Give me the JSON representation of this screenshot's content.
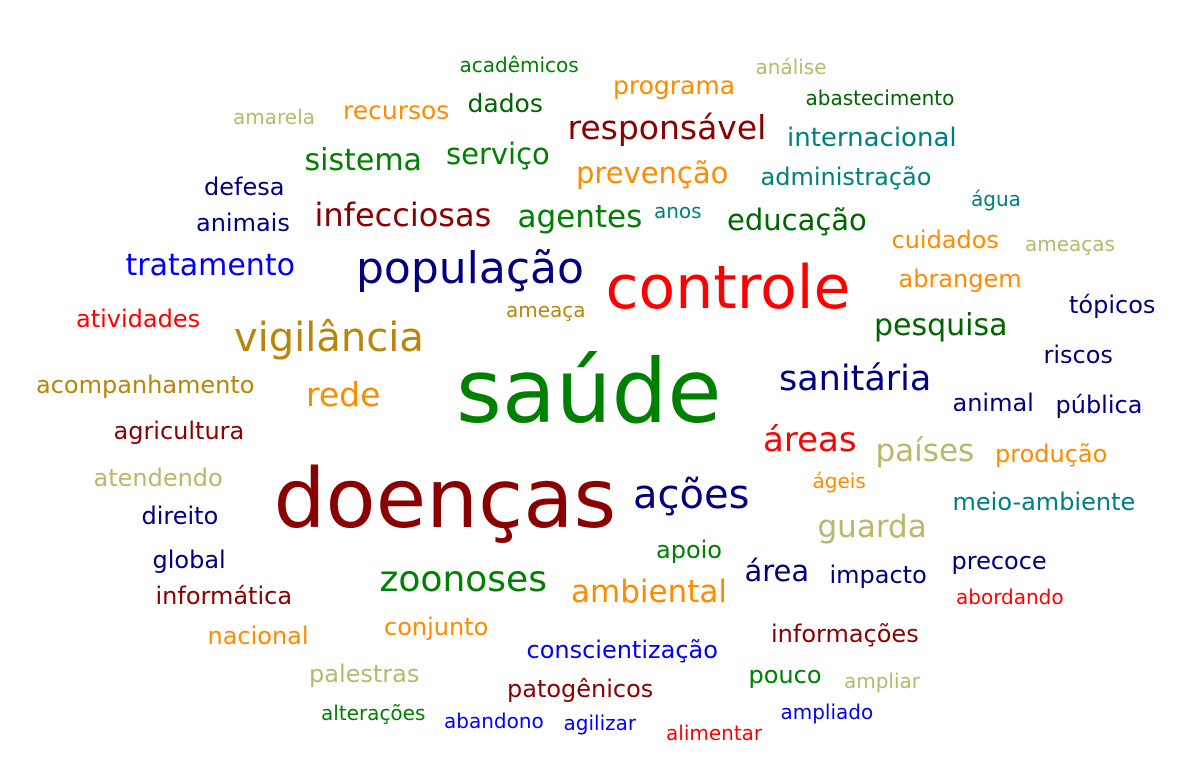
{
  "colors": {
    "red": "#ff0000",
    "green": "#008000",
    "darkgreen": "#006400",
    "maroon": "#8b0000",
    "navy": "#000080",
    "blue": "#0000ff",
    "orange": "#ff8c00",
    "goldenrod": "#b8860b",
    "khaki": "#bdb76b",
    "teal": "#008080"
  },
  "words": [
    {
      "text": "saúde",
      "color": "green"
    },
    {
      "text": "doenças",
      "color": "maroon"
    },
    {
      "text": "controle",
      "color": "red"
    },
    {
      "text": "população",
      "color": "navy"
    },
    {
      "text": "vigilância",
      "color": "goldenrod"
    },
    {
      "text": "ações",
      "color": "navy"
    },
    {
      "text": "zoonoses",
      "color": "green"
    },
    {
      "text": "sanitária",
      "color": "navy"
    },
    {
      "text": "áreas",
      "color": "red"
    },
    {
      "text": "rede",
      "color": "orange"
    },
    {
      "text": "responsável",
      "color": "maroon"
    },
    {
      "text": "infecciosas",
      "color": "maroon"
    },
    {
      "text": "agentes",
      "color": "green"
    },
    {
      "text": "ambiental",
      "color": "orange"
    },
    {
      "text": "guarda",
      "color": "khaki"
    },
    {
      "text": "países",
      "color": "khaki"
    },
    {
      "text": "pesquisa",
      "color": "darkgreen"
    },
    {
      "text": "tratamento",
      "color": "blue"
    },
    {
      "text": "sistema",
      "color": "green"
    },
    {
      "text": "serviço",
      "color": "green"
    },
    {
      "text": "prevenção",
      "color": "orange"
    },
    {
      "text": "educação",
      "color": "darkgreen"
    },
    {
      "text": "área",
      "color": "navy"
    },
    {
      "text": "internacional",
      "color": "teal"
    },
    {
      "text": "programa",
      "color": "orange"
    },
    {
      "text": "recursos",
      "color": "orange"
    },
    {
      "text": "dados",
      "color": "darkgreen"
    },
    {
      "text": "administração",
      "color": "teal"
    },
    {
      "text": "cuidados",
      "color": "orange"
    },
    {
      "text": "abrangem",
      "color": "orange"
    },
    {
      "text": "tópicos",
      "color": "navy"
    },
    {
      "text": "riscos",
      "color": "navy"
    },
    {
      "text": "animal",
      "color": "navy"
    },
    {
      "text": "pública",
      "color": "navy"
    },
    {
      "text": "produção",
      "color": "orange"
    },
    {
      "text": "meio-ambiente",
      "color": "teal"
    },
    {
      "text": "precoce",
      "color": "navy"
    },
    {
      "text": "impacto",
      "color": "navy"
    },
    {
      "text": "informações",
      "color": "maroon"
    },
    {
      "text": "conscientização",
      "color": "blue"
    },
    {
      "text": "patogênicos",
      "color": "maroon"
    },
    {
      "text": "informática",
      "color": "maroon"
    },
    {
      "text": "acompanhamento",
      "color": "goldenrod"
    },
    {
      "text": "agricultura",
      "color": "maroon"
    },
    {
      "text": "atividades",
      "color": "red"
    },
    {
      "text": "atendendo",
      "color": "khaki"
    },
    {
      "text": "direito",
      "color": "navy"
    },
    {
      "text": "global",
      "color": "navy"
    },
    {
      "text": "nacional",
      "color": "orange"
    },
    {
      "text": "conjunto",
      "color": "orange"
    },
    {
      "text": "palestras",
      "color": "khaki"
    },
    {
      "text": "defesa",
      "color": "navy"
    },
    {
      "text": "animais",
      "color": "navy"
    },
    {
      "text": "apoio",
      "color": "green"
    },
    {
      "text": "pouco",
      "color": "green"
    },
    {
      "text": "acadêmicos",
      "color": "green"
    },
    {
      "text": "análise",
      "color": "khaki"
    },
    {
      "text": "abastecimento",
      "color": "darkgreen"
    },
    {
      "text": "amarela",
      "color": "khaki"
    },
    {
      "text": "água",
      "color": "teal"
    },
    {
      "text": "ameaças",
      "color": "khaki"
    },
    {
      "text": "anos",
      "color": "teal"
    },
    {
      "text": "ameaça",
      "color": "goldenrod"
    },
    {
      "text": "ágeis",
      "color": "orange"
    },
    {
      "text": "abordando",
      "color": "red"
    },
    {
      "text": "ampliar",
      "color": "khaki"
    },
    {
      "text": "ampliado",
      "color": "blue"
    },
    {
      "text": "alimentar",
      "color": "red"
    },
    {
      "text": "alterações",
      "color": "green"
    },
    {
      "text": "abandono",
      "color": "blue"
    },
    {
      "text": "agilizar",
      "color": "blue"
    }
  ]
}
